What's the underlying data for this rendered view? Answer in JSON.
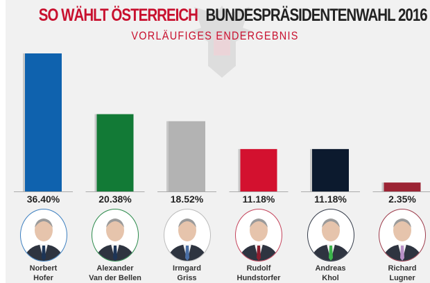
{
  "header": {
    "title_red": "SO WÄHLT ÖSTERREICH",
    "title_dark": "BUNDESPRÄSIDENTENWAHL 2016",
    "subtitle": "VORLÄUFIGES ENDERGEBNIS"
  },
  "chart_data": {
    "type": "bar",
    "title": "BUNDESPRÄSIDENTENWAHL 2016",
    "subtitle": "VORLÄUFIGES ENDERGEBNIS",
    "categories": [
      "Norbert Hofer",
      "Alexander Van der Bellen",
      "Irmgard Griss",
      "Rudolf Hundstorfer",
      "Andreas Khol",
      "Richard Lugner"
    ],
    "values": [
      36.4,
      20.38,
      18.52,
      11.18,
      11.18,
      2.35
    ],
    "labels": [
      "36.40%",
      "20.38%",
      "18.52%",
      "11.18%",
      "11.18%",
      "2.35%"
    ],
    "colors": [
      "#0f62ae",
      "#127a36",
      "#b3b3b3",
      "#d3112f",
      "#0c1a2e",
      "#9c2434"
    ],
    "unit": "%",
    "ylim": [
      0,
      36.4
    ],
    "grid": false
  },
  "candidates": [
    {
      "first": "Norbert",
      "last": "Hofer",
      "ring": "#3c7fc0",
      "tie": "#1d3557"
    },
    {
      "first": "Alexander",
      "last": "Van der Bellen",
      "ring": "#2a8a4a",
      "tie": "#1d3557"
    },
    {
      "first": "Irmgard",
      "last": "Griss",
      "ring": "#bbbbbb",
      "tie": "#4a6fa5"
    },
    {
      "first": "Rudolf",
      "last": "Hundstorfer",
      "ring": "#c4425a",
      "tie": "#8b1e2e"
    },
    {
      "first": "Andreas",
      "last": "Khol",
      "ring": "#333a48",
      "tie": "#3cb44b"
    },
    {
      "first": "Richard",
      "last": "Lugner",
      "ring": "#9c3a4a",
      "tie": "#b78fc6"
    }
  ]
}
